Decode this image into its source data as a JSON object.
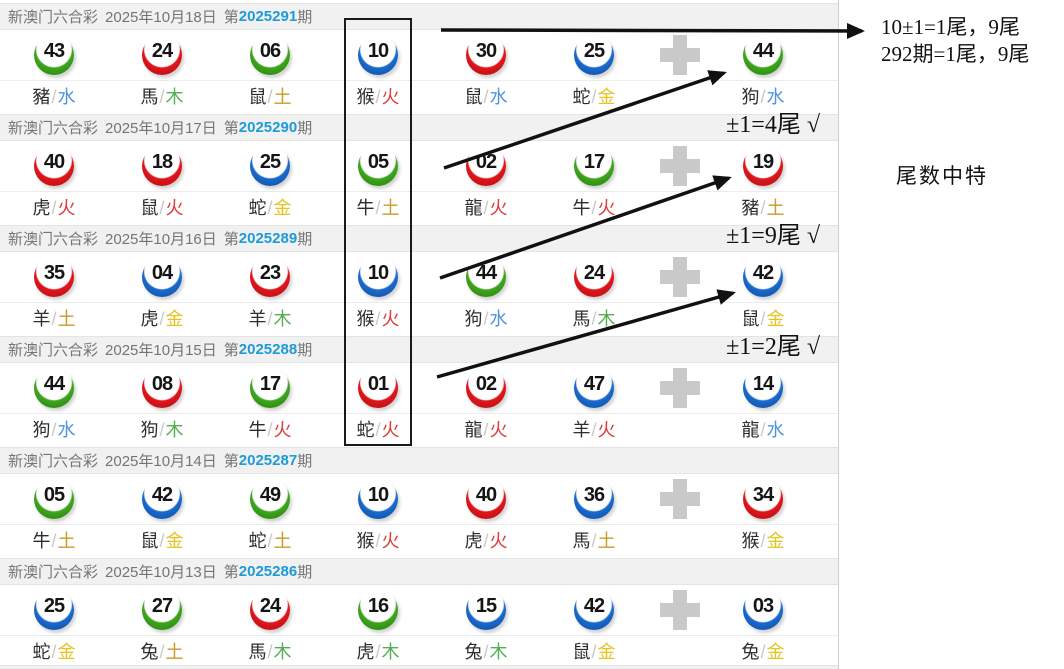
{
  "lottery": {
    "name": "新澳门六合彩",
    "strings": {
      "period_pre": "第",
      "period_post": "期",
      "slash": "/"
    },
    "draws": [
      {
        "date": "2025年10月18日",
        "period": "2025291",
        "balls": [
          {
            "num": "43",
            "color": "green",
            "zodiac": "豬",
            "element": "水"
          },
          {
            "num": "24",
            "color": "red",
            "zodiac": "馬",
            "element": "木"
          },
          {
            "num": "06",
            "color": "green",
            "zodiac": "鼠",
            "element": "土"
          },
          {
            "num": "10",
            "color": "blue",
            "zodiac": "猴",
            "element": "火"
          },
          {
            "num": "30",
            "color": "red",
            "zodiac": "鼠",
            "element": "水"
          },
          {
            "num": "25",
            "color": "blue",
            "zodiac": "蛇",
            "element": "金"
          }
        ],
        "special": {
          "num": "44",
          "color": "green",
          "zodiac": "狗",
          "element": "水"
        }
      },
      {
        "date": "2025年10月17日",
        "period": "2025290",
        "balls": [
          {
            "num": "40",
            "color": "red",
            "zodiac": "虎",
            "element": "火"
          },
          {
            "num": "18",
            "color": "red",
            "zodiac": "鼠",
            "element": "火"
          },
          {
            "num": "25",
            "color": "blue",
            "zodiac": "蛇",
            "element": "金"
          },
          {
            "num": "05",
            "color": "green",
            "zodiac": "牛",
            "element": "土"
          },
          {
            "num": "02",
            "color": "red",
            "zodiac": "龍",
            "element": "火"
          },
          {
            "num": "17",
            "color": "green",
            "zodiac": "牛",
            "element": "火"
          }
        ],
        "special": {
          "num": "19",
          "color": "red",
          "zodiac": "豬",
          "element": "土"
        }
      },
      {
        "date": "2025年10月16日",
        "period": "2025289",
        "balls": [
          {
            "num": "35",
            "color": "red",
            "zodiac": "羊",
            "element": "土"
          },
          {
            "num": "04",
            "color": "blue",
            "zodiac": "虎",
            "element": "金"
          },
          {
            "num": "23",
            "color": "red",
            "zodiac": "羊",
            "element": "木"
          },
          {
            "num": "10",
            "color": "blue",
            "zodiac": "猴",
            "element": "火"
          },
          {
            "num": "44",
            "color": "green",
            "zodiac": "狗",
            "element": "水"
          },
          {
            "num": "24",
            "color": "red",
            "zodiac": "馬",
            "element": "木"
          }
        ],
        "special": {
          "num": "42",
          "color": "blue",
          "zodiac": "鼠",
          "element": "金"
        }
      },
      {
        "date": "2025年10月15日",
        "period": "2025288",
        "balls": [
          {
            "num": "44",
            "color": "green",
            "zodiac": "狗",
            "element": "水"
          },
          {
            "num": "08",
            "color": "red",
            "zodiac": "狗",
            "element": "木"
          },
          {
            "num": "17",
            "color": "green",
            "zodiac": "牛",
            "element": "火"
          },
          {
            "num": "01",
            "color": "red",
            "zodiac": "蛇",
            "element": "火"
          },
          {
            "num": "02",
            "color": "red",
            "zodiac": "龍",
            "element": "火"
          },
          {
            "num": "47",
            "color": "blue",
            "zodiac": "羊",
            "element": "火"
          }
        ],
        "special": {
          "num": "14",
          "color": "blue",
          "zodiac": "龍",
          "element": "水"
        }
      },
      {
        "date": "2025年10月14日",
        "period": "2025287",
        "balls": [
          {
            "num": "05",
            "color": "green",
            "zodiac": "牛",
            "element": "土"
          },
          {
            "num": "42",
            "color": "blue",
            "zodiac": "鼠",
            "element": "金"
          },
          {
            "num": "49",
            "color": "green",
            "zodiac": "蛇",
            "element": "土"
          },
          {
            "num": "10",
            "color": "blue",
            "zodiac": "猴",
            "element": "火"
          },
          {
            "num": "40",
            "color": "red",
            "zodiac": "虎",
            "element": "火"
          },
          {
            "num": "36",
            "color": "blue",
            "zodiac": "馬",
            "element": "土"
          }
        ],
        "special": {
          "num": "34",
          "color": "red",
          "zodiac": "猴",
          "element": "金"
        }
      },
      {
        "date": "2025年10月13日",
        "period": "2025286",
        "balls": [
          {
            "num": "25",
            "color": "blue",
            "zodiac": "蛇",
            "element": "金"
          },
          {
            "num": "27",
            "color": "green",
            "zodiac": "兔",
            "element": "土"
          },
          {
            "num": "24",
            "color": "red",
            "zodiac": "馬",
            "element": "木"
          },
          {
            "num": "16",
            "color": "green",
            "zodiac": "虎",
            "element": "木"
          },
          {
            "num": "15",
            "color": "blue",
            "zodiac": "兔",
            "element": "木"
          },
          {
            "num": "42",
            "color": "blue",
            "zodiac": "鼠",
            "element": "金"
          }
        ],
        "special": {
          "num": "03",
          "color": "blue",
          "zodiac": "兔",
          "element": "金"
        }
      }
    ]
  },
  "annotations": {
    "top_line1": "10±1=1尾，9尾",
    "top_line2": "292期=1尾，9尾",
    "row_notes": [
      "±1=4尾 √",
      "±1=9尾 √",
      "±1=2尾 √"
    ],
    "side_title": "尾数中特"
  },
  "colors": {
    "ball": {
      "green": "#2f9315",
      "red": "#e0161c",
      "blue": "#1a6ace"
    },
    "period_number": "#1e9bd7",
    "elements": {
      "水": "#4f94e0",
      "木": "#56ad56",
      "土": "#c99b2a",
      "火": "#e03a3a",
      "金": "#e3c422"
    }
  }
}
